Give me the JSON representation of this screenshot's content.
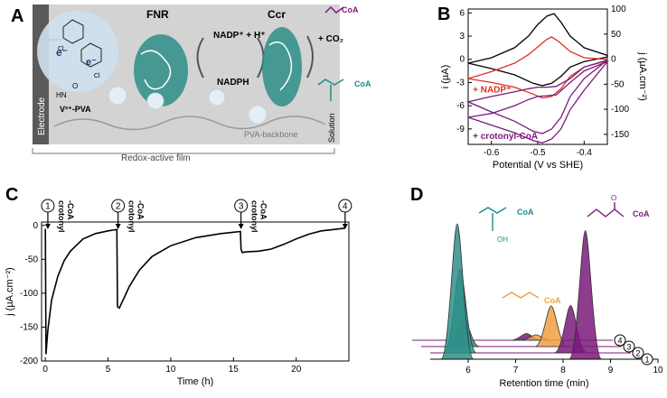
{
  "panels": {
    "A": {
      "letter": "A",
      "electrode_label": "Electrode",
      "electron": "e⁻",
      "cl_label": "Cl",
      "linker_nh": "HN",
      "linker_o": "O",
      "viologen_label": "V²⁺-PVA",
      "fnr_label": "FNR",
      "ccr_label": "Ccr",
      "nadp_label": "NADP⁺ + H⁺",
      "nadph_label": "NADPH",
      "co2_label": "+ CO₂",
      "coa_label": "CoA",
      "backbone_label": "PVA-backbone",
      "solution_label": "Solution",
      "film_label": "Redox-active film",
      "colors": {
        "purple": "#7a1a7a",
        "teal": "#1f8a8a",
        "gray_box": "#cfcfcf",
        "electrode": "#555555"
      }
    },
    "D_labels": {
      "coa": "CoA",
      "oh": "OH",
      "o": "O"
    }
  },
  "chart_data": [
    {
      "panel": "B",
      "type": "line",
      "title": "",
      "xlabel": "Potential (V vs SHE)",
      "ylabel_left": "i (µA)",
      "ylabel_right": "j (µA.cm⁻²)",
      "xlim": [
        -0.65,
        -0.35
      ],
      "ylim_left": [
        -11,
        6.5
      ],
      "ylim_right": [
        -170,
        100
      ],
      "xticks": [
        "-0.6",
        "-0.5",
        "-0.4"
      ],
      "yticks_left": [
        "6",
        "3",
        "0",
        "-3",
        "-6",
        "-9"
      ],
      "yticks_right": [
        "100",
        "50",
        "0",
        "-50",
        "-100",
        "-150"
      ],
      "legend": [
        "+ NADP⁺",
        "+ crotonyl-CoA"
      ],
      "series": [
        {
          "color": "#000000",
          "forward": [
            [
              -0.65,
              -0.5
            ],
            [
              -0.6,
              0.2
            ],
            [
              -0.55,
              1.5
            ],
            [
              -0.52,
              3.0
            ],
            [
              -0.5,
              4.5
            ],
            [
              -0.48,
              5.6
            ],
            [
              -0.465,
              5.9
            ],
            [
              -0.45,
              4.8
            ],
            [
              -0.43,
              3.0
            ],
            [
              -0.4,
              1.5
            ],
            [
              -0.35,
              0.5
            ]
          ],
          "reverse": [
            [
              -0.35,
              0.3
            ],
            [
              -0.4,
              -0.3
            ],
            [
              -0.43,
              -1.0
            ],
            [
              -0.45,
              -2.2
            ],
            [
              -0.47,
              -3.1
            ],
            [
              -0.49,
              -3.4
            ],
            [
              -0.51,
              -3.1
            ],
            [
              -0.55,
              -2.0
            ],
            [
              -0.6,
              -1.2
            ],
            [
              -0.65,
              -0.5
            ]
          ]
        },
        {
          "name": "+ NADP⁺",
          "color": "#e0301e",
          "forward": [
            [
              -0.65,
              -2.5
            ],
            [
              -0.6,
              -1.6
            ],
            [
              -0.55,
              -0.5
            ],
            [
              -0.52,
              0.6
            ],
            [
              -0.5,
              1.6
            ],
            [
              -0.48,
              2.6
            ],
            [
              -0.47,
              2.9
            ],
            [
              -0.455,
              2.3
            ],
            [
              -0.43,
              1.0
            ],
            [
              -0.4,
              0.2
            ],
            [
              -0.35,
              0.0
            ]
          ],
          "reverse": [
            [
              -0.35,
              -0.2
            ],
            [
              -0.4,
              -1.0
            ],
            [
              -0.43,
              -2.2
            ],
            [
              -0.45,
              -3.8
            ],
            [
              -0.47,
              -4.8
            ],
            [
              -0.49,
              -5.0
            ],
            [
              -0.51,
              -4.5
            ],
            [
              -0.55,
              -3.6
            ],
            [
              -0.6,
              -3.0
            ],
            [
              -0.65,
              -2.5
            ]
          ]
        },
        {
          "color": "#7a1a7a",
          "forward": [
            [
              -0.65,
              -5.5
            ],
            [
              -0.6,
              -4.8
            ],
            [
              -0.55,
              -4.2
            ],
            [
              -0.52,
              -3.8
            ],
            [
              -0.5,
              -3.6
            ],
            [
              -0.48,
              -3.6
            ],
            [
              -0.46,
              -3.5
            ],
            [
              -0.43,
              -2.5
            ],
            [
              -0.4,
              -1.0
            ],
            [
              -0.35,
              -0.1
            ]
          ],
          "reverse": [
            [
              -0.35,
              -0.1
            ],
            [
              -0.4,
              -2.5
            ],
            [
              -0.43,
              -4.8
            ],
            [
              -0.45,
              -7.5
            ],
            [
              -0.47,
              -9.0
            ],
            [
              -0.49,
              -9.6
            ],
            [
              -0.51,
              -9.3
            ],
            [
              -0.55,
              -8.0
            ],
            [
              -0.6,
              -6.8
            ],
            [
              -0.65,
              -5.5
            ]
          ]
        },
        {
          "name": "+ crotonyl-CoA",
          "color": "#7a1a7a",
          "forward": [
            [
              -0.65,
              -7.5
            ],
            [
              -0.6,
              -7.0
            ],
            [
              -0.55,
              -6.0
            ],
            [
              -0.52,
              -5.2
            ],
            [
              -0.5,
              -4.8
            ],
            [
              -0.48,
              -4.7
            ],
            [
              -0.46,
              -4.6
            ],
            [
              -0.43,
              -3.0
            ],
            [
              -0.4,
              -1.5
            ],
            [
              -0.35,
              -0.3
            ]
          ],
          "reverse": [
            [
              -0.35,
              -0.3
            ],
            [
              -0.4,
              -4.0
            ],
            [
              -0.43,
              -6.5
            ],
            [
              -0.45,
              -9.0
            ],
            [
              -0.47,
              -10.3
            ],
            [
              -0.49,
              -10.8
            ],
            [
              -0.51,
              -10.5
            ],
            [
              -0.55,
              -9.5
            ],
            [
              -0.6,
              -8.5
            ],
            [
              -0.65,
              -7.5
            ]
          ]
        }
      ]
    },
    {
      "panel": "C",
      "type": "line",
      "title": "",
      "xlabel": "Time (h)",
      "ylabel": "j (µA.cm⁻²)",
      "xlim": [
        -0.3,
        24.2
      ],
      "ylim": [
        -200,
        5
      ],
      "xticks": [
        "0",
        "5",
        "10",
        "15",
        "20"
      ],
      "yticks": [
        "0",
        "-50",
        "-100",
        "-150",
        "-200"
      ],
      "annotations": [
        {
          "num": "1",
          "t": 0.2,
          "label": "crotonyl -CoA"
        },
        {
          "num": "2",
          "t": 5.8,
          "label": "crotonyl -CoA"
        },
        {
          "num": "3",
          "t": 15.6,
          "label": "crotonyl -CoA"
        },
        {
          "num": "4",
          "t": 23.9,
          "label": ""
        }
      ],
      "x": [
        0,
        0.05,
        0.2,
        0.5,
        1,
        1.5,
        2,
        3,
        4,
        5,
        5.7,
        5.75,
        5.9,
        6.2,
        6.7,
        7.5,
        8.5,
        10,
        12,
        14,
        15.55,
        15.6,
        15.7,
        16,
        17,
        18,
        19,
        20,
        21,
        22,
        23,
        23.9
      ],
      "y": [
        -5,
        -190,
        -155,
        -110,
        -75,
        -52,
        -38,
        -20,
        -12,
        -8,
        -6,
        -120,
        -122,
        -110,
        -90,
        -66,
        -46,
        -30,
        -18,
        -12,
        -9,
        -35,
        -40,
        -39,
        -38,
        -35,
        -28,
        -20,
        -13,
        -8,
        -6,
        -4
      ]
    },
    {
      "panel": "D",
      "type": "area",
      "title": "",
      "xlabel": "Retention time (min)",
      "xlim": [
        5.2,
        10
      ],
      "xticks": [
        "6",
        "7",
        "8",
        "9",
        "10"
      ],
      "traces": [
        "1",
        "2",
        "3",
        "4"
      ],
      "peaks": [
        {
          "trace": "1",
          "rt": 5.77,
          "height": 1.0,
          "color": "#2f8f8a"
        },
        {
          "trace": "1",
          "rt": 8.47,
          "height": 0.95,
          "color": "#7a1a7a"
        },
        {
          "trace": "2",
          "rt": 6.02,
          "height": 0.62,
          "color": "#2f8f8a"
        },
        {
          "trace": "2",
          "rt": 8.35,
          "height": 0.35,
          "color": "#7a1a7a"
        },
        {
          "trace": "3",
          "rt": 6.28,
          "height": 0.22,
          "color": "#2f8f8a"
        },
        {
          "trace": "3",
          "rt": 8.13,
          "height": 0.3,
          "color": "#f0a040"
        },
        {
          "trace": "4",
          "rt": 7.8,
          "height": 0.05,
          "color": "#7a1a7a"
        },
        {
          "trace": "4",
          "rt": 8.0,
          "height": 0.04,
          "color": "#f0a040"
        }
      ]
    }
  ],
  "letters": {
    "B": "B",
    "C": "C",
    "D": "D"
  }
}
